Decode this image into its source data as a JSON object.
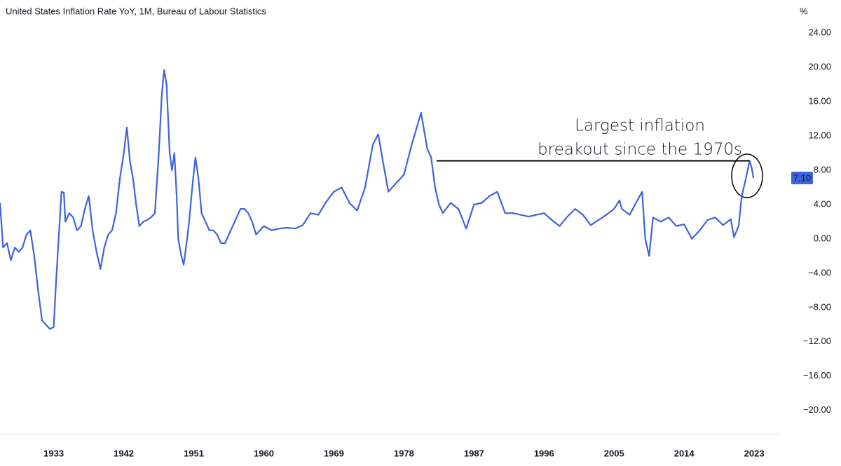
{
  "chart_data": {
    "type": "line",
    "title": "United States Inflation Rate YoY, 1M, Bureau of Labour Statistics",
    "y_unit": "%",
    "series": [
      {
        "name": "United States Inflation Rate YoY",
        "color": "#3d63dd",
        "x": [
          1926.1,
          1926.5,
          1927,
          1927.5,
          1928,
          1928.5,
          1929,
          1929.5,
          1930,
          1930.5,
          1931,
          1931.5,
          1932,
          1932.5,
          1933,
          1933.3,
          1933.7,
          1934,
          1934.3,
          1934.5,
          1935,
          1935.5,
          1936,
          1936.5,
          1937,
          1937.5,
          1938,
          1938.5,
          1939,
          1939.5,
          1940,
          1940.5,
          1941,
          1941.5,
          1942,
          1942.4,
          1942.8,
          1943.2,
          1943.6,
          1944,
          1944.5,
          1945,
          1945.5,
          1946,
          1946.5,
          1946.9,
          1947.2,
          1947.5,
          1947.9,
          1948.2,
          1948.5,
          1948.8,
          1949,
          1949.4,
          1949.7,
          1950,
          1950.4,
          1950.8,
          1951.2,
          1951.6,
          1952,
          1952.5,
          1953,
          1953.5,
          1954,
          1954.5,
          1955,
          1955.5,
          1956,
          1956.5,
          1957,
          1957.5,
          1958,
          1958.5,
          1959,
          1959.5,
          1960,
          1961,
          1962,
          1963,
          1964,
          1965,
          1966,
          1967,
          1968,
          1969,
          1970,
          1971,
          1972,
          1973,
          1974,
          1974.7,
          1975.3,
          1976,
          1977,
          1978,
          1979,
          1980.2,
          1981,
          1981.5,
          1982,
          1982.5,
          1983,
          1984,
          1985,
          1986,
          1987,
          1988,
          1989,
          1990,
          1991,
          1992,
          1993,
          1994,
          1995,
          1996,
          1997,
          1998,
          1999,
          2000,
          2001,
          2002,
          2003,
          2004,
          2005,
          2005.7,
          2006,
          2007,
          2008,
          2008.6,
          2009,
          2009.5,
          2010,
          2011,
          2012,
          2013,
          2014,
          2015,
          2016,
          2017,
          2018,
          2019,
          2020,
          2020.4,
          2021,
          2021.4,
          2021.9,
          2022.4,
          2022.7,
          2022.9
        ],
        "values": [
          4.2,
          -1,
          -0.5,
          -2.5,
          -1,
          -1.5,
          -1,
          0.5,
          1,
          -2,
          -6,
          -9.5,
          -10,
          -10.5,
          -10.3,
          -5,
          1,
          5.5,
          5.4,
          2,
          3,
          2.5,
          1,
          1.5,
          3.5,
          5,
          1,
          -1.5,
          -3.5,
          -1,
          0.5,
          1,
          3,
          7,
          10,
          13,
          9,
          7,
          4,
          1.5,
          2,
          2.2,
          2.5,
          3,
          10,
          17,
          19.7,
          18,
          10,
          8,
          10,
          5,
          0,
          -2,
          -3,
          -1,
          2,
          6,
          9.5,
          7,
          3,
          2,
          1,
          1,
          0.5,
          -0.5,
          -0.5,
          0.5,
          1.5,
          2.5,
          3.5,
          3.5,
          3,
          2,
          0.5,
          1,
          1.5,
          1,
          1.2,
          1.3,
          1.2,
          1.6,
          3,
          2.8,
          4.3,
          5.5,
          6,
          4.2,
          3.3,
          6,
          11,
          12.2,
          9,
          5.5,
          6.5,
          7.5,
          11,
          14.7,
          10.5,
          9.5,
          6,
          4,
          3,
          4.2,
          3.5,
          1.2,
          4,
          4.2,
          5,
          5.5,
          3,
          3,
          2.8,
          2.6,
          2.8,
          3,
          2.2,
          1.5,
          2.6,
          3.5,
          2.8,
          1.6,
          2.2,
          2.8,
          3.5,
          4.5,
          3.5,
          2.8,
          4.5,
          5.5,
          0,
          -2,
          2.5,
          2,
          2.5,
          1.5,
          1.7,
          0,
          1,
          2.2,
          2.5,
          1.6,
          2.3,
          0.2,
          1.5,
          5,
          6.9,
          9.1,
          8.2,
          7.1
        ]
      }
    ],
    "price_label": {
      "value": 7.1,
      "label": "7.10"
    },
    "xlim": [
      1926.1,
      2026.5
    ],
    "xticks": [
      1933,
      1942,
      1951,
      1960,
      1969,
      1978,
      1987,
      1996,
      2005,
      2014,
      2023
    ],
    "ylim": [
      -22.8,
      25.4
    ],
    "yticks": [
      {
        "value": 24,
        "label": "24.00"
      },
      {
        "value": 20,
        "label": "20.00"
      },
      {
        "value": 16,
        "label": "16.00"
      },
      {
        "value": 12,
        "label": "12.00"
      },
      {
        "value": 8,
        "label": "8.00"
      },
      {
        "value": 4,
        "label": "4.00"
      },
      {
        "value": 0,
        "label": "0.00"
      },
      {
        "value": -4,
        "label": "−4.00"
      },
      {
        "value": -8,
        "label": "−8.00"
      },
      {
        "value": -12,
        "label": "−12.00"
      },
      {
        "value": -16,
        "label": "−16.00"
      },
      {
        "value": -20,
        "label": "−20.00"
      }
    ],
    "annotation": {
      "text": [
        "Largest inflation",
        "breakout since the 1970s"
      ],
      "line_value": 9.1,
      "line_x": [
        1982.2,
        2022.4
      ]
    }
  }
}
